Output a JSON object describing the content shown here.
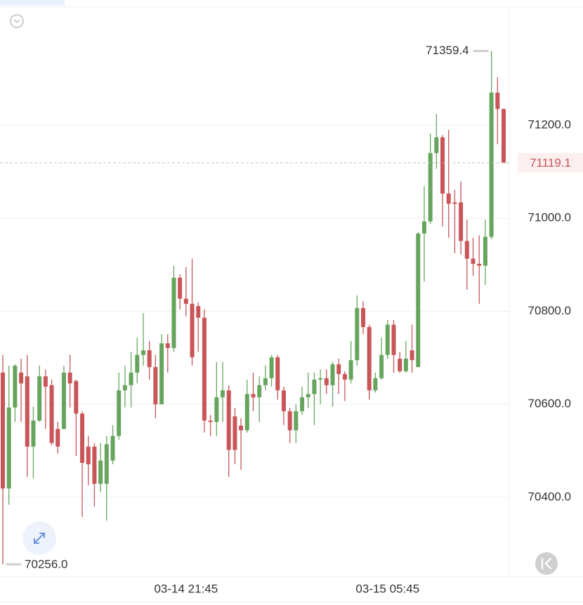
{
  "chart_data": {
    "type": "candlestick",
    "categories": [
      null,
      null,
      null,
      null,
      null,
      null,
      null,
      null,
      null,
      null,
      null,
      null,
      null,
      null,
      null,
      null,
      null,
      null,
      null,
      null,
      null,
      null,
      null,
      null,
      null,
      null,
      null,
      null,
      null,
      null,
      "03-14 21:45",
      null,
      null,
      null,
      null,
      null,
      null,
      null,
      null,
      null,
      null,
      null,
      null,
      null,
      null,
      null,
      null,
      null,
      null,
      null,
      null,
      null,
      null,
      null,
      null,
      null,
      null,
      null,
      null,
      null,
      null,
      null,
      null,
      "03-15 05:45",
      null,
      null,
      null,
      null,
      null,
      null,
      null,
      null,
      null,
      null,
      null,
      null,
      null,
      null,
      null,
      null,
      null,
      null,
      null
    ],
    "open": [
      70668,
      70419,
      70593,
      70668,
      70660,
      70509,
      70565,
      70660,
      70641,
      70547,
      70547,
      70668,
      70650,
      70580,
      70509,
      70509,
      70429,
      70429,
      70479,
      70532,
      70630,
      70641,
      70668,
      70706,
      70716,
      70680,
      70600,
      70731,
      70721,
      70872,
      70827,
      70816,
      70811,
      70786,
      70565,
      70562,
      70615,
      70630,
      70574,
      70554,
      70544,
      70622,
      70615,
      70641,
      70656,
      70701,
      70630,
      70585,
      70544,
      70585,
      70615,
      70622,
      70653,
      70656,
      70641,
      70686,
      70665,
      70653,
      70695,
      70807,
      70766,
      70630,
      70656,
      70706,
      70771,
      70698,
      70671,
      70716,
      70680,
      70967,
      70993,
      71140,
      71174,
      71053,
      71034,
      71034,
      70951,
      70913,
      70902,
      70898,
      70960,
      71270,
      71235
    ],
    "high": [
      70706,
      70683,
      70686,
      70698,
      70706,
      70595,
      70683,
      70675,
      70653,
      70562,
      70683,
      70706,
      70653,
      70585,
      70532,
      70517,
      70517,
      70532,
      70555,
      70668,
      70683,
      70713,
      70743,
      70796,
      70736,
      70706,
      70751,
      70751,
      70898,
      70879,
      70895,
      70913,
      70819,
      70804,
      70577,
      70691,
      70691,
      70641,
      70592,
      70570,
      70653,
      70668,
      70660,
      70683,
      70706,
      70706,
      70638,
      70592,
      70600,
      70638,
      70668,
      70668,
      70675,
      70675,
      70691,
      70698,
      70671,
      70736,
      70834,
      70822,
      70771,
      70668,
      70743,
      70781,
      70781,
      70713,
      70736,
      70771,
      70970,
      71069,
      71182,
      71224,
      71179,
      71190,
      71061,
      71079,
      70997,
      70958,
      70963,
      70997,
      71359.4,
      71303,
      71235
    ],
    "low": [
      70256,
      70384,
      70562,
      70562,
      70444,
      70441,
      70562,
      70547,
      70512,
      70494,
      70547,
      70593,
      70489,
      70358,
      70426,
      70380,
      70411,
      70350,
      70471,
      70524,
      70593,
      70593,
      70645,
      70683,
      70653,
      70570,
      70600,
      70668,
      70713,
      70804,
      70789,
      70683,
      70713,
      70539,
      70532,
      70532,
      70562,
      70444,
      70471,
      70459,
      70539,
      70585,
      70562,
      70630,
      70638,
      70610,
      70555,
      70517,
      70517,
      70577,
      70592,
      70555,
      70600,
      70622,
      70595,
      70622,
      70607,
      70645,
      70683,
      70751,
      70610,
      70625,
      70653,
      70698,
      70668,
      70668,
      70668,
      70668,
      70680,
      70864,
      70988,
      71106,
      70982,
      70958,
      70925,
      70922,
      70846,
      70876,
      70816,
      70857,
      70955,
      71159,
      71119.1
    ],
    "close": [
      70419,
      70593,
      70683,
      70645,
      70509,
      70565,
      70660,
      70638,
      70517,
      70509,
      70668,
      70645,
      70580,
      70474,
      70471,
      70429,
      70479,
      70514,
      70532,
      70630,
      70641,
      70668,
      70706,
      70716,
      70680,
      70600,
      70731,
      70721,
      70872,
      70827,
      70816,
      70701,
      70786,
      70565,
      70562,
      70615,
      70630,
      70502,
      70502,
      70544,
      70622,
      70615,
      70641,
      70656,
      70701,
      70630,
      70585,
      70544,
      70585,
      70615,
      70622,
      70653,
      70656,
      70641,
      70686,
      70665,
      70653,
      70695,
      70807,
      70766,
      70630,
      70656,
      70706,
      70771,
      70706,
      70671,
      70698,
      70695,
      70967,
      70993,
      71140,
      71174,
      71053,
      71031,
      71031,
      70951,
      70913,
      70902,
      70898,
      70960,
      71270,
      71235,
      71119.1
    ],
    "up_color": "#67a55f",
    "down_color": "#c95559",
    "ylim": [
      70229,
      71454
    ],
    "yticks": [
      {
        "value": 70400,
        "label": "70400.0"
      },
      {
        "value": 70600,
        "label": "70600.0"
      },
      {
        "value": 70800,
        "label": "70800.0"
      },
      {
        "value": 71000,
        "label": "71000.0"
      },
      {
        "value": 71200,
        "label": "71200.0"
      }
    ],
    "annotations": [
      {
        "value": 71359.4,
        "label": "71359.4"
      },
      {
        "value": 70256,
        "label": "70256.0"
      }
    ],
    "grid": true
  }
}
